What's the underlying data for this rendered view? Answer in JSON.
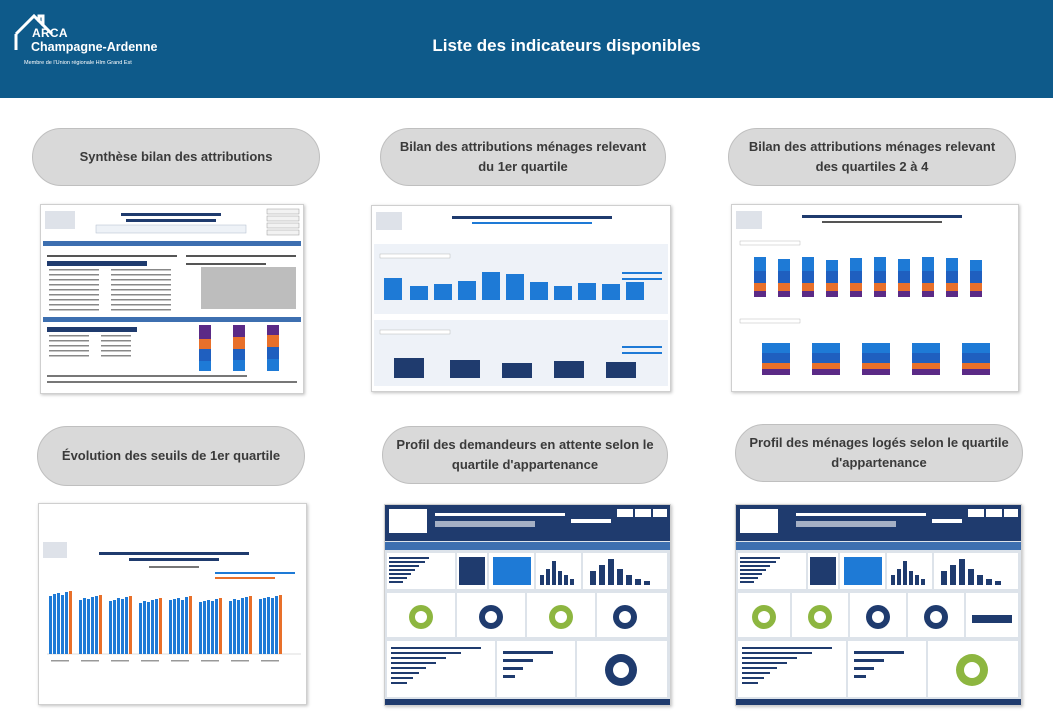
{
  "header": {
    "title": "Liste des indicateurs disponibles",
    "logo": {
      "line1": "ARCA",
      "line2": "Champagne-Ardenne",
      "line3": "Membre de l'Union régionale Hlm Grand Est"
    },
    "background_color": "#0e5a8a"
  },
  "indicators": [
    {
      "label": "Synthèse bilan des attributions"
    },
    {
      "label": "Bilan des attributions ménages relevant du 1er quartile"
    },
    {
      "label": "Bilan des attributions ménages relevant des quartiles 2 à 4"
    },
    {
      "label": "Évolution des seuils de 1er quartile"
    },
    {
      "label": "Profil des demandeurs en attente selon le quartile d'appartenance"
    },
    {
      "label": "Profil des ménages logés selon le quartile d'appartenance"
    }
  ],
  "colors": {
    "header": "#0e5a8a",
    "pill_background": "#d9d9d9",
    "pill_text": "#3a3a3a",
    "thumb_navy": "#1f3b6e",
    "thumb_blue": "#1e7ad6",
    "thumb_orange": "#e8702a",
    "thumb_green": "#8db640",
    "thumb_purple": "#5b2a86"
  }
}
